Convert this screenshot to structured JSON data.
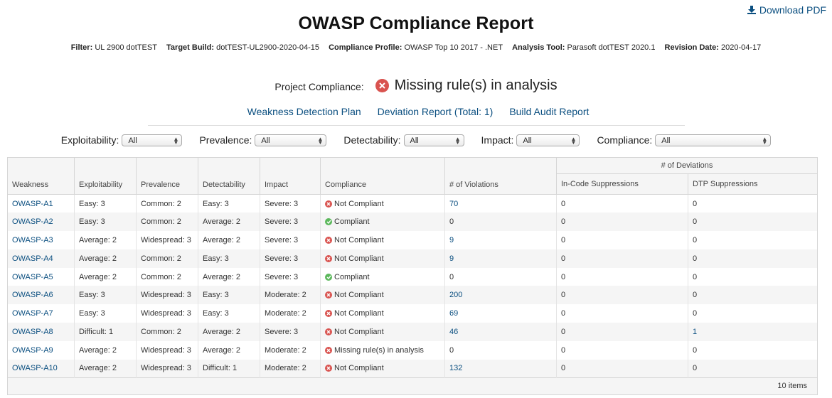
{
  "download": {
    "label": "Download PDF"
  },
  "title": "OWASP Compliance Report",
  "meta": [
    {
      "label": "Filter:",
      "value": "UL 2900 dotTEST"
    },
    {
      "label": "Target Build:",
      "value": "dotTEST-UL2900-2020-04-15"
    },
    {
      "label": "Compliance Profile:",
      "value": "OWASP Top 10 2017 - .NET"
    },
    {
      "label": "Analysis Tool:",
      "value": "Parasoft dotTEST 2020.1"
    },
    {
      "label": "Revision Date:",
      "value": "2020-04-17"
    }
  ],
  "project_compliance": {
    "label": "Project Compliance:",
    "status": "Missing rule(s) in analysis"
  },
  "links": {
    "weakness_plan": "Weakness Detection Plan",
    "deviation_report": "Deviation Report (Total: 1)",
    "build_audit": "Build Audit Report"
  },
  "filters": [
    {
      "label": "Exploitability:",
      "value": "All"
    },
    {
      "label": "Prevalence:",
      "value": "All"
    },
    {
      "label": "Detectability:",
      "value": "All"
    },
    {
      "label": "Impact:",
      "value": "All"
    },
    {
      "label": "Compliance:",
      "value": "All"
    }
  ],
  "table": {
    "group_header": "# of Deviations",
    "columns": [
      "Weakness",
      "Exploitability",
      "Prevalence",
      "Detectability",
      "Impact",
      "Compliance",
      "# of Violations",
      "In-Code Suppressions",
      "DTP Suppressions"
    ],
    "rows": [
      {
        "weakness": "OWASP-A1",
        "exploitability": "Easy: 3",
        "prevalence": "Common: 2",
        "detectability": "Easy: 3",
        "impact": "Severe: 3",
        "compliance": "Not Compliant",
        "status": "bad",
        "violations": "70",
        "incode": "0",
        "dtp": "0"
      },
      {
        "weakness": "OWASP-A2",
        "exploitability": "Easy: 3",
        "prevalence": "Common: 2",
        "detectability": "Average: 2",
        "impact": "Severe: 3",
        "compliance": "Compliant",
        "status": "good",
        "violations": "0",
        "incode": "0",
        "dtp": "0"
      },
      {
        "weakness": "OWASP-A3",
        "exploitability": "Average: 2",
        "prevalence": "Widespread: 3",
        "detectability": "Average: 2",
        "impact": "Severe: 3",
        "compliance": "Not Compliant",
        "status": "bad",
        "violations": "9",
        "incode": "0",
        "dtp": "0"
      },
      {
        "weakness": "OWASP-A4",
        "exploitability": "Average: 2",
        "prevalence": "Common: 2",
        "detectability": "Easy: 3",
        "impact": "Severe: 3",
        "compliance": "Not Compliant",
        "status": "bad",
        "violations": "9",
        "incode": "0",
        "dtp": "0"
      },
      {
        "weakness": "OWASP-A5",
        "exploitability": "Average: 2",
        "prevalence": "Common: 2",
        "detectability": "Average: 2",
        "impact": "Severe: 3",
        "compliance": "Compliant",
        "status": "good",
        "violations": "0",
        "incode": "0",
        "dtp": "0"
      },
      {
        "weakness": "OWASP-A6",
        "exploitability": "Easy: 3",
        "prevalence": "Widespread: 3",
        "detectability": "Easy: 3",
        "impact": "Moderate: 2",
        "compliance": "Not Compliant",
        "status": "bad",
        "violations": "200",
        "incode": "0",
        "dtp": "0"
      },
      {
        "weakness": "OWASP-A7",
        "exploitability": "Easy: 3",
        "prevalence": "Widespread: 3",
        "detectability": "Easy: 3",
        "impact": "Moderate: 2",
        "compliance": "Not Compliant",
        "status": "bad",
        "violations": "69",
        "incode": "0",
        "dtp": "0"
      },
      {
        "weakness": "OWASP-A8",
        "exploitability": "Difficult: 1",
        "prevalence": "Common: 2",
        "detectability": "Average: 2",
        "impact": "Severe: 3",
        "compliance": "Not Compliant",
        "status": "bad",
        "violations": "46",
        "incode": "0",
        "dtp": "1"
      },
      {
        "weakness": "OWASP-A9",
        "exploitability": "Average: 2",
        "prevalence": "Widespread: 3",
        "detectability": "Average: 2",
        "impact": "Moderate: 2",
        "compliance": "Missing rule(s) in analysis",
        "status": "bad",
        "violations": "0",
        "incode": "0",
        "dtp": "0"
      },
      {
        "weakness": "OWASP-A10",
        "exploitability": "Average: 2",
        "prevalence": "Widespread: 3",
        "detectability": "Difficult: 1",
        "impact": "Moderate: 2",
        "compliance": "Not Compliant",
        "status": "bad",
        "violations": "132",
        "incode": "0",
        "dtp": "0"
      }
    ],
    "footer": "10 items"
  }
}
